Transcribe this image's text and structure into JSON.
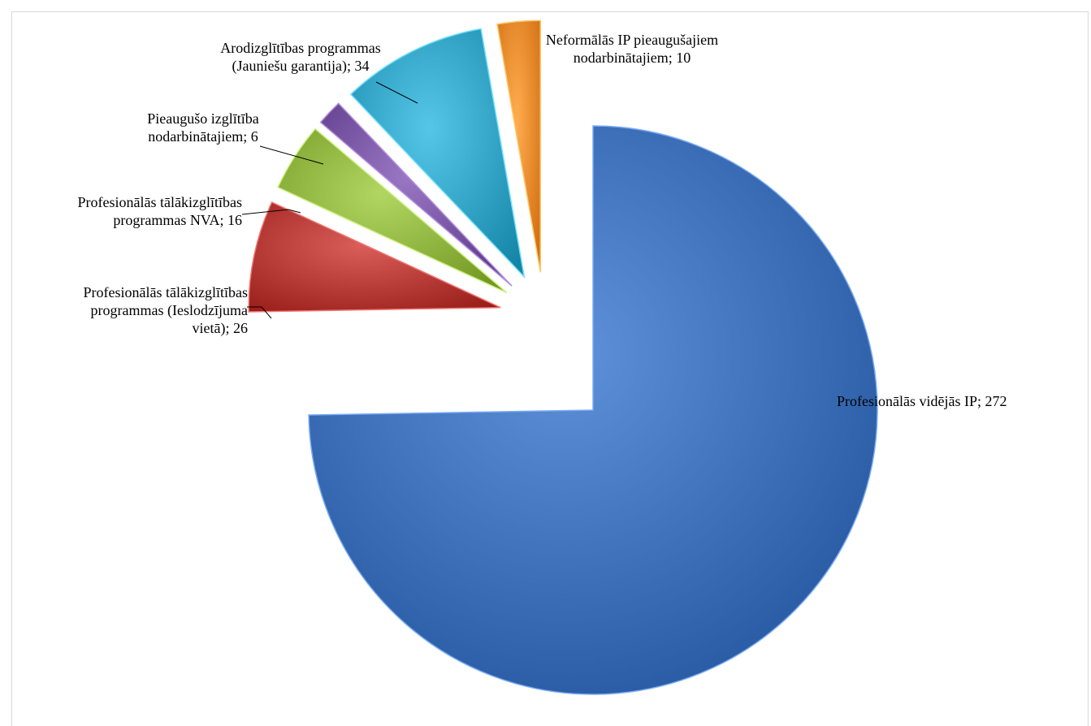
{
  "chart_data": {
    "type": "pie",
    "title": "",
    "slices": [
      {
        "label": "Profesionālās vidējās IP",
        "value": 272,
        "color": "#3d6fb8",
        "label_lines": [
          "Profesionālās vidējās IP; 272"
        ]
      },
      {
        "label": "Profesionālās tālākizglītības programmas (Ieslodzījuma vietā)",
        "value": 26,
        "color": "#b63a36",
        "label_lines": [
          "Profesionālās tālākizglītības",
          "programmas (Ieslodzījuma",
          "vietā); 26"
        ]
      },
      {
        "label": "Profesionālās tālākizglītības programmas NVA",
        "value": 16,
        "color": "#8eb33f",
        "label_lines": [
          "Profesionālās tālākizglītības",
          "programmas NVA; 16"
        ]
      },
      {
        "label": "Pieaugušo izglītība nodarbinātajiem",
        "value": 6,
        "color": "#7754a2",
        "label_lines": [
          "Pieaugušo izglītība",
          "nodarbinātajiem; 6"
        ]
      },
      {
        "label": "Arodizglītības programmas (Jauniešu garantija)",
        "value": 34,
        "color": "#32a3c4",
        "label_lines": [
          "Arodizglītības programmas",
          "(Jauniešu garantija); 34"
        ]
      },
      {
        "label": "Neformālās IP pieaugušajiem nodarbinātajiem",
        "value": 10,
        "color": "#ee8a2c",
        "label_lines": [
          "Neformālās IP pieaugušajiem",
          "nodarbinātajiem; 10"
        ]
      }
    ],
    "legend": "none",
    "data_labels": "category; value"
  }
}
